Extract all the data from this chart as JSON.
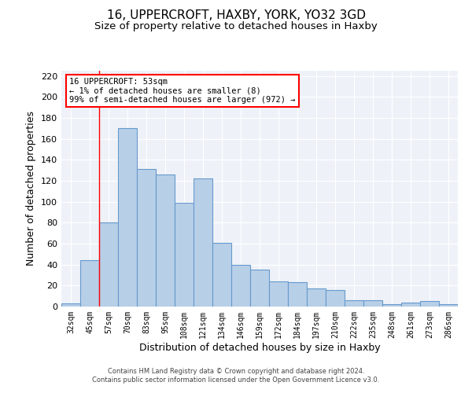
{
  "title1": "16, UPPERCROFT, HAXBY, YORK, YO32 3GD",
  "title2": "Size of property relative to detached houses in Haxby",
  "xlabel": "Distribution of detached houses by size in Haxby",
  "ylabel": "Number of detached properties",
  "categories": [
    "32sqm",
    "45sqm",
    "57sqm",
    "70sqm",
    "83sqm",
    "95sqm",
    "108sqm",
    "121sqm",
    "134sqm",
    "146sqm",
    "159sqm",
    "172sqm",
    "184sqm",
    "197sqm",
    "210sqm",
    "222sqm",
    "235sqm",
    "248sqm",
    "261sqm",
    "273sqm",
    "286sqm"
  ],
  "values": [
    3,
    44,
    80,
    170,
    131,
    126,
    99,
    122,
    61,
    40,
    35,
    24,
    23,
    17,
    16,
    6,
    6,
    2,
    4,
    5,
    2
  ],
  "bar_color": "#b8cfe8",
  "bar_edge_color": "#6699cc",
  "red_line_x": 1.5,
  "annotation_text": "16 UPPERCROFT: 53sqm\n← 1% of detached houses are smaller (8)\n99% of semi-detached houses are larger (972) →",
  "annotation_box_color": "white",
  "annotation_box_edge": "red",
  "ylim": [
    0,
    225
  ],
  "yticks": [
    0,
    20,
    40,
    60,
    80,
    100,
    120,
    140,
    160,
    180,
    200,
    220
  ],
  "footer1": "Contains HM Land Registry data © Crown copyright and database right 2024.",
  "footer2": "Contains public sector information licensed under the Open Government Licence v3.0.",
  "bg_color": "#eef2f8",
  "grid_color": "#ffffff",
  "title1_fontsize": 11,
  "title2_fontsize": 9.5,
  "xlabel_fontsize": 9,
  "ylabel_fontsize": 9,
  "annotation_fontsize": 7.5
}
